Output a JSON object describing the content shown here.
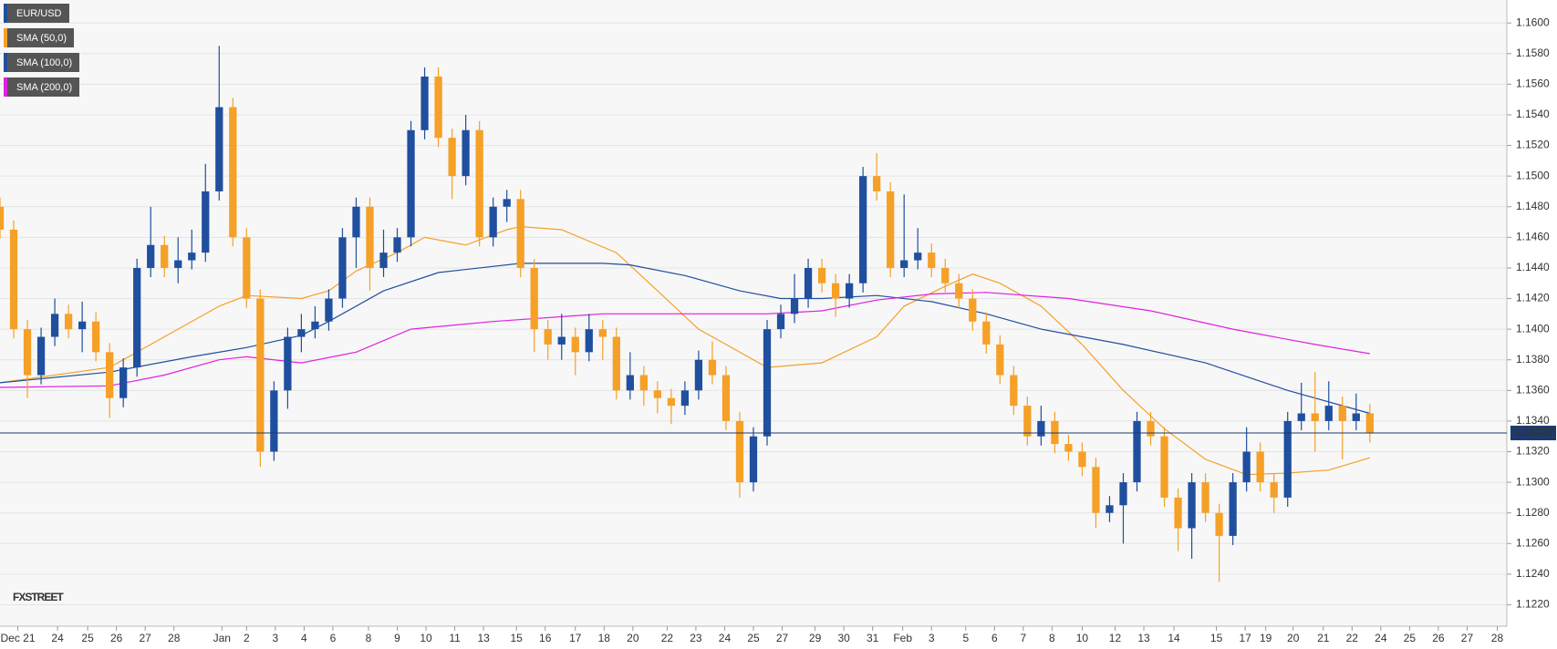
{
  "chart_data": {
    "type": "candlestick",
    "name": "EUR/USD",
    "up_color": "#1f4f9e",
    "down_color": "#f5a027",
    "x": [
      0,
      1,
      2,
      3,
      4,
      5,
      6,
      7,
      8,
      9,
      10,
      11,
      12,
      13,
      14,
      15,
      16,
      17,
      18,
      19,
      20,
      21,
      22,
      23,
      24,
      25,
      26,
      27,
      28,
      29,
      30,
      31,
      32,
      33,
      34,
      35,
      36,
      37,
      38,
      39,
      40,
      41,
      42,
      43,
      44,
      45,
      46,
      47,
      48,
      49,
      50,
      51,
      52,
      53,
      54,
      55,
      56,
      57,
      58,
      59,
      60,
      61,
      62,
      63,
      64,
      65,
      66,
      67,
      68,
      69,
      70,
      71,
      72,
      73,
      74,
      75,
      76,
      77,
      78,
      79,
      80,
      81,
      82,
      83,
      84,
      85,
      86,
      87,
      88,
      89,
      90,
      91,
      92,
      93,
      94,
      95,
      96,
      97,
      98,
      99,
      100
    ],
    "open": [
      1.148,
      1.1465,
      1.14,
      1.137,
      1.1395,
      1.141,
      1.14,
      1.1405,
      1.1385,
      1.1355,
      1.1375,
      1.144,
      1.1455,
      1.144,
      1.1445,
      1.145,
      1.149,
      1.1545,
      1.146,
      1.142,
      1.132,
      1.136,
      1.1395,
      1.14,
      1.1405,
      1.142,
      1.146,
      1.148,
      1.144,
      1.145,
      1.146,
      1.153,
      1.1565,
      1.1525,
      1.15,
      1.153,
      1.146,
      1.148,
      1.1485,
      1.144,
      1.14,
      1.139,
      1.1395,
      1.1385,
      1.14,
      1.1395,
      1.136,
      1.137,
      1.136,
      1.1355,
      1.135,
      1.136,
      1.138,
      1.137,
      1.134,
      1.13,
      1.133,
      1.14,
      1.141,
      1.142,
      1.144,
      1.143,
      1.142,
      1.143,
      1.15,
      1.149,
      1.144,
      1.1445,
      1.145,
      1.144,
      1.143,
      1.142,
      1.1405,
      1.139,
      1.137,
      1.135,
      1.133,
      1.134,
      1.1325,
      1.132,
      1.131,
      1.128,
      1.1285,
      1.13,
      1.134,
      1.133,
      1.129,
      1.127,
      1.13,
      1.128,
      1.1265,
      1.13,
      1.132,
      1.13,
      1.129,
      1.134,
      1.1345,
      1.134,
      1.135,
      1.134,
      1.1345
    ],
    "high": [
      1.1486,
      1.1471,
      1.1406,
      1.1401,
      1.142,
      1.1416,
      1.1418,
      1.1411,
      1.1391,
      1.1381,
      1.1446,
      1.148,
      1.1461,
      1.146,
      1.1465,
      1.1508,
      1.1585,
      1.1551,
      1.1466,
      1.1426,
      1.1366,
      1.1401,
      1.141,
      1.1415,
      1.1426,
      1.1466,
      1.1486,
      1.1486,
      1.1465,
      1.1466,
      1.1536,
      1.1571,
      1.1571,
      1.1531,
      1.154,
      1.1536,
      1.1486,
      1.1491,
      1.1491,
      1.1446,
      1.1406,
      1.141,
      1.1401,
      1.141,
      1.1406,
      1.1401,
      1.1385,
      1.1376,
      1.1366,
      1.1361,
      1.1366,
      1.1386,
      1.1392,
      1.1376,
      1.1346,
      1.1336,
      1.1406,
      1.1416,
      1.1436,
      1.1446,
      1.1446,
      1.1436,
      1.1436,
      1.1506,
      1.1515,
      1.1496,
      1.1488,
      1.1466,
      1.1456,
      1.1446,
      1.1436,
      1.1426,
      1.1411,
      1.1396,
      1.1376,
      1.1356,
      1.135,
      1.1346,
      1.1331,
      1.1326,
      1.1316,
      1.1291,
      1.1306,
      1.1346,
      1.1346,
      1.1336,
      1.1296,
      1.1306,
      1.1306,
      1.1286,
      1.1306,
      1.1336,
      1.1326,
      1.1306,
      1.1346,
      1.1365,
      1.1372,
      1.1366,
      1.1356,
      1.1358,
      1.1351
    ],
    "low": [
      1.1459,
      1.1394,
      1.1355,
      1.1364,
      1.1389,
      1.1394,
      1.1385,
      1.1379,
      1.1342,
      1.1349,
      1.1369,
      1.1434,
      1.1434,
      1.143,
      1.1439,
      1.1444,
      1.1484,
      1.1454,
      1.1414,
      1.131,
      1.1314,
      1.1348,
      1.1385,
      1.1394,
      1.1399,
      1.1414,
      1.144,
      1.1425,
      1.1434,
      1.1444,
      1.1454,
      1.1524,
      1.1519,
      1.1485,
      1.1494,
      1.1454,
      1.1454,
      1.147,
      1.1434,
      1.1385,
      1.138,
      1.138,
      1.137,
      1.1379,
      1.138,
      1.1354,
      1.1354,
      1.135,
      1.1345,
      1.1338,
      1.1344,
      1.1354,
      1.1364,
      1.1334,
      1.129,
      1.1294,
      1.1324,
      1.1394,
      1.1404,
      1.1414,
      1.1424,
      1.1408,
      1.1414,
      1.1424,
      1.1484,
      1.1434,
      1.1434,
      1.1439,
      1.1434,
      1.1424,
      1.1414,
      1.1399,
      1.1384,
      1.1364,
      1.1344,
      1.1324,
      1.1324,
      1.1319,
      1.1314,
      1.1304,
      1.127,
      1.1274,
      1.126,
      1.1294,
      1.1324,
      1.1284,
      1.1255,
      1.125,
      1.1274,
      1.1235,
      1.1259,
      1.1294,
      1.1294,
      1.128,
      1.1284,
      1.1334,
      1.132,
      1.1334,
      1.1315,
      1.1334,
      1.1326
    ],
    "close": [
      1.1465,
      1.14,
      1.137,
      1.1395,
      1.141,
      1.14,
      1.1405,
      1.1385,
      1.1355,
      1.1375,
      1.144,
      1.1455,
      1.144,
      1.1445,
      1.145,
      1.149,
      1.1545,
      1.146,
      1.142,
      1.132,
      1.136,
      1.1395,
      1.14,
      1.1405,
      1.142,
      1.146,
      1.148,
      1.144,
      1.145,
      1.146,
      1.153,
      1.1565,
      1.1525,
      1.15,
      1.153,
      1.146,
      1.148,
      1.1485,
      1.144,
      1.14,
      1.139,
      1.1395,
      1.1385,
      1.14,
      1.1395,
      1.136,
      1.137,
      1.136,
      1.1355,
      1.135,
      1.136,
      1.138,
      1.137,
      1.134,
      1.13,
      1.133,
      1.14,
      1.141,
      1.142,
      1.144,
      1.143,
      1.142,
      1.143,
      1.15,
      1.149,
      1.144,
      1.1445,
      1.145,
      1.144,
      1.143,
      1.142,
      1.1405,
      1.139,
      1.137,
      1.135,
      1.133,
      1.134,
      1.1325,
      1.132,
      1.131,
      1.128,
      1.1285,
      1.13,
      1.134,
      1.133,
      1.129,
      1.127,
      1.13,
      1.128,
      1.1265,
      1.13,
      1.132,
      1.13,
      1.129,
      1.134,
      1.1345,
      1.134,
      1.135,
      1.134,
      1.1345,
      1.1332
    ],
    "lines": [
      {
        "name": "SMA (50,0)",
        "color": "#f5a027",
        "x": [
          0,
          8,
          12,
          16,
          18,
          22,
          24,
          26,
          29,
          31,
          34,
          37,
          38,
          41,
          45,
          48,
          51,
          53,
          56,
          60,
          64,
          66,
          69,
          71,
          73,
          76,
          79,
          82,
          85,
          88,
          91,
          94,
          97,
          100
        ],
        "values": [
          1.1365,
          1.1375,
          1.1395,
          1.1415,
          1.1422,
          1.142,
          1.1425,
          1.1438,
          1.145,
          1.146,
          1.1455,
          1.1465,
          1.1467,
          1.1465,
          1.145,
          1.1425,
          1.14,
          1.139,
          1.1375,
          1.1378,
          1.1395,
          1.1415,
          1.1428,
          1.1436,
          1.143,
          1.1415,
          1.139,
          1.136,
          1.1335,
          1.1315,
          1.1305,
          1.1306,
          1.1308,
          1.1316
        ]
      },
      {
        "name": "SMA (100,0)",
        "color": "#1f4f9e",
        "x": [
          0,
          8,
          14,
          18,
          22,
          24,
          28,
          32,
          38,
          44,
          46,
          50,
          54,
          57,
          60,
          64,
          68,
          72,
          76,
          82,
          88,
          94,
          100
        ],
        "values": [
          1.1365,
          1.1372,
          1.1382,
          1.1388,
          1.1396,
          1.1405,
          1.1425,
          1.1437,
          1.1443,
          1.1443,
          1.1442,
          1.1435,
          1.1425,
          1.142,
          1.142,
          1.1422,
          1.1418,
          1.141,
          1.14,
          1.139,
          1.1378,
          1.136,
          1.1345
        ]
      },
      {
        "name": "SMA (200,0)",
        "color": "#e020e0",
        "x": [
          0,
          8,
          12,
          16,
          18,
          22,
          26,
          30,
          36,
          44,
          50,
          56,
          60,
          64,
          68,
          72,
          78,
          84,
          90,
          96,
          100
        ],
        "values": [
          1.1362,
          1.1363,
          1.137,
          1.138,
          1.1382,
          1.1378,
          1.1385,
          1.14,
          1.1405,
          1.141,
          1.141,
          1.141,
          1.1412,
          1.1419,
          1.1423,
          1.1424,
          1.142,
          1.1412,
          1.14,
          1.139,
          1.1384
        ]
      }
    ],
    "last_price": {
      "value": 1.13322,
      "label": "1.13322"
    },
    "watermark": "FXSTREET",
    "xlim": [
      0,
      110
    ],
    "ylim": [
      1.1206,
      1.1615
    ],
    "yticks": [
      {
        "value": 1.122,
        "label": "1.1220"
      },
      {
        "value": 1.124,
        "label": "1.1240"
      },
      {
        "value": 1.126,
        "label": "1.1260"
      },
      {
        "value": 1.128,
        "label": "1.1280"
      },
      {
        "value": 1.13,
        "label": "1.1300"
      },
      {
        "value": 1.132,
        "label": "1.1320"
      },
      {
        "value": 1.134,
        "label": "1.1340"
      },
      {
        "value": 1.136,
        "label": "1.1360"
      },
      {
        "value": 1.138,
        "label": "1.1380"
      },
      {
        "value": 1.14,
        "label": "1.1400"
      },
      {
        "value": 1.142,
        "label": "1.1420"
      },
      {
        "value": 1.144,
        "label": "1.1440"
      },
      {
        "value": 1.146,
        "label": "1.1460"
      },
      {
        "value": 1.148,
        "label": "1.1480"
      },
      {
        "value": 1.15,
        "label": "1.1500"
      },
      {
        "value": 1.152,
        "label": "1.1520"
      },
      {
        "value": 1.154,
        "label": "1.1540"
      },
      {
        "value": 1.156,
        "label": "1.1560"
      },
      {
        "value": 1.158,
        "label": "1.1580"
      },
      {
        "value": 1.16,
        "label": "1.1600"
      }
    ],
    "xticks": [
      {
        "value": 1.3,
        "label": "Dec 21"
      },
      {
        "value": 4.2,
        "label": "24"
      },
      {
        "value": 6.4,
        "label": "25"
      },
      {
        "value": 8.5,
        "label": "26"
      },
      {
        "value": 10.6,
        "label": "27"
      },
      {
        "value": 12.7,
        "label": "28"
      },
      {
        "value": 16.2,
        "label": "Jan"
      },
      {
        "value": 18.0,
        "label": "2"
      },
      {
        "value": 20.1,
        "label": "3"
      },
      {
        "value": 22.2,
        "label": "4"
      },
      {
        "value": 24.3,
        "label": "6"
      },
      {
        "value": 26.9,
        "label": "8"
      },
      {
        "value": 29.0,
        "label": "9"
      },
      {
        "value": 31.1,
        "label": "10"
      },
      {
        "value": 33.2,
        "label": "11"
      },
      {
        "value": 35.3,
        "label": "13"
      },
      {
        "value": 37.7,
        "label": "15"
      },
      {
        "value": 39.8,
        "label": "16"
      },
      {
        "value": 42.0,
        "label": "17"
      },
      {
        "value": 44.1,
        "label": "18"
      },
      {
        "value": 46.2,
        "label": "20"
      },
      {
        "value": 48.7,
        "label": "22"
      },
      {
        "value": 50.8,
        "label": "23"
      },
      {
        "value": 52.9,
        "label": "24"
      },
      {
        "value": 55.0,
        "label": "25"
      },
      {
        "value": 57.1,
        "label": "27"
      },
      {
        "value": 59.5,
        "label": "29"
      },
      {
        "value": 61.6,
        "label": "30"
      },
      {
        "value": 63.7,
        "label": "31"
      },
      {
        "value": 65.9,
        "label": "Feb"
      },
      {
        "value": 68.0,
        "label": "3"
      },
      {
        "value": 70.5,
        "label": "5"
      },
      {
        "value": 72.6,
        "label": "6"
      },
      {
        "value": 74.7,
        "label": "7"
      },
      {
        "value": 76.8,
        "label": "8"
      },
      {
        "value": 79.0,
        "label": "10"
      },
      {
        "value": 81.4,
        "label": "12"
      },
      {
        "value": 83.5,
        "label": "13"
      },
      {
        "value": 85.7,
        "label": "14"
      },
      {
        "value": 88.8,
        "label": "15"
      },
      {
        "value": 90.9,
        "label": "17"
      },
      {
        "value": 92.4,
        "label": "19"
      },
      {
        "value": 94.4,
        "label": "20"
      },
      {
        "value": 96.6,
        "label": "21"
      },
      {
        "value": 98.7,
        "label": "22"
      },
      {
        "value": 100.8,
        "label": "24"
      },
      {
        "value": 102.9,
        "label": "25"
      },
      {
        "value": 105.0,
        "label": "26"
      },
      {
        "value": 107.1,
        "label": "27"
      },
      {
        "value": 109.3,
        "label": "28"
      }
    ]
  }
}
